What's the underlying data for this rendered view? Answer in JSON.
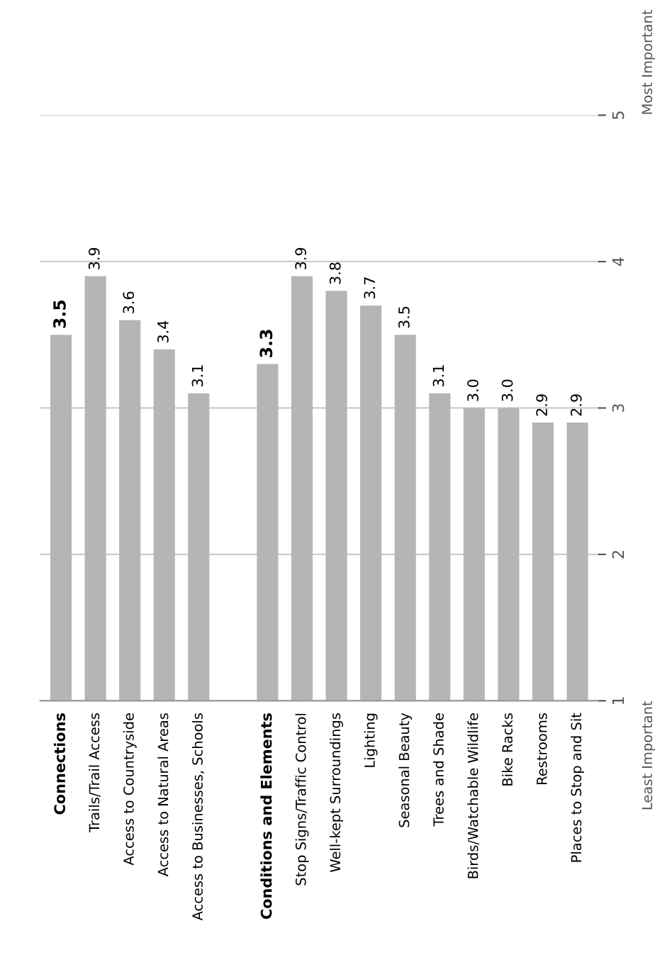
{
  "chart_data": {
    "type": "bar",
    "categories": [
      "Connections",
      "Trails/Trail Access",
      "Access to Countryside",
      "Access to Natural Areas",
      "Access to Businesses, Schools",
      null,
      "Conditions and Elements",
      "Stop Signs/Traffic Control",
      "Well-kept Surroundings",
      "Lighting",
      "Seasonal Beauty",
      "Trees and Shade",
      "Birds/Watchable Wildlife",
      "Bike Racks",
      "Restrooms",
      "Places to Stop and Sit"
    ],
    "values": [
      3.5,
      3.9,
      3.6,
      3.4,
      3.1,
      null,
      3.3,
      3.9,
      3.8,
      3.7,
      3.5,
      3.1,
      3.0,
      3.0,
      2.9,
      2.9
    ],
    "color": "#b5b5b5",
    "value_labels": [
      "3.5",
      "3.9",
      "3.6",
      "3.4",
      "3.1",
      null,
      "3.3",
      "3.9",
      "3.8",
      "3.7",
      "3.5",
      "3.1",
      "3.0",
      "3.0",
      "2.9",
      "2.9"
    ],
    "ylim": [
      1,
      5
    ],
    "yticks": [
      1,
      2,
      3,
      4,
      5
    ],
    "grid": "y",
    "annotations": [
      "Least Important",
      "Most Important"
    ]
  }
}
